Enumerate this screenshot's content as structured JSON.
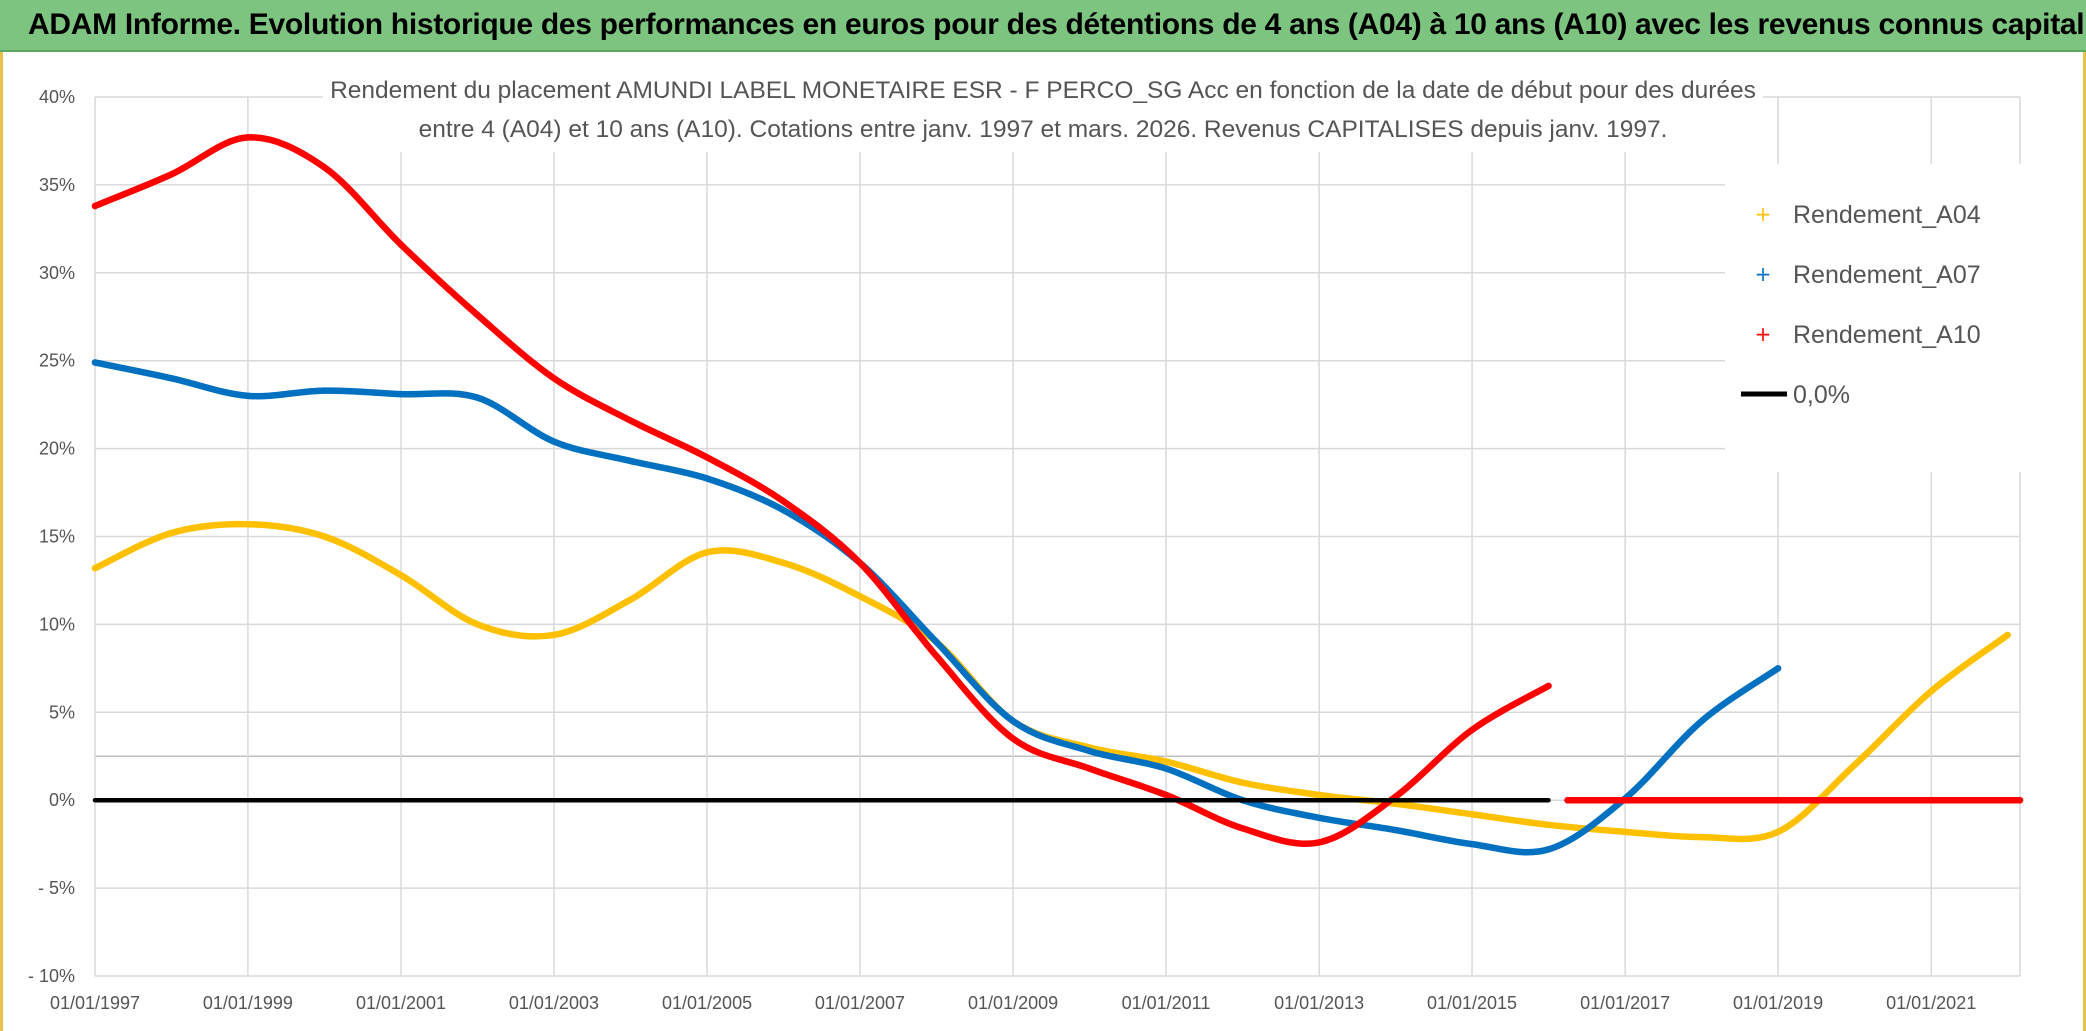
{
  "header": {
    "title": "ADAM Informe. Evolution historique des performances en euros pour des détentions de 4 ans (A04) à 10 ans (A10) avec les revenus connus capitalisés"
  },
  "colors": {
    "banner": "#7cc47f",
    "a04": "#ffc000",
    "a07": "#0070c0",
    "a10": "#ff0000",
    "zero": "#000000",
    "grid": "#d9d9d9"
  },
  "chart_data": {
    "type": "line",
    "title_line1": "Rendement du placement AMUNDI LABEL MONETAIRE ESR - F PERCO_SG Acc en fonction de la date de début pour des durées",
    "title_line2": "entre 4 (A04) et 10 ans (A10). Cotations entre janv. 1997 et mars. 2026. Revenus CAPITALISES depuis janv. 1997.",
    "xlim": [
      "01/01/1997",
      "01/03/2022"
    ],
    "ylim": [
      -10,
      40
    ],
    "x_tick_labels": [
      "01/01/1997",
      "01/01/1999",
      "01/01/2001",
      "01/01/2003",
      "01/01/2005",
      "01/01/2007",
      "01/01/2009",
      "01/01/2011",
      "01/01/2013",
      "01/01/2015",
      "01/01/2017",
      "01/01/2019",
      "01/01/2021"
    ],
    "y_ticks": [
      {
        "value": 40,
        "label": "40%"
      },
      {
        "value": 35,
        "label": "35%"
      },
      {
        "value": 30,
        "label": "30%"
      },
      {
        "value": 25,
        "label": "25%"
      },
      {
        "value": 20,
        "label": "20%"
      },
      {
        "value": 15,
        "label": "15%"
      },
      {
        "value": 10,
        "label": "10%"
      },
      {
        "value": 5,
        "label": "5%"
      },
      {
        "value": 0,
        "label": "0%"
      },
      {
        "value": -5,
        "label": "- 5%"
      },
      {
        "value": -10,
        "label": "- 10%"
      }
    ],
    "extra_gridline": 2.5,
    "grid": true,
    "legend_position": "top-right",
    "series": [
      {
        "name": "Rendement_A04",
        "color": "#ffc000",
        "x": [
          "01/01/1997",
          "01/01/1998",
          "01/01/1999",
          "01/01/2000",
          "01/01/2001",
          "01/01/2002",
          "01/01/2003",
          "01/01/2004",
          "01/01/2005",
          "01/01/2006",
          "01/01/2007",
          "01/01/2008",
          "01/01/2009",
          "01/01/2010",
          "01/01/2011",
          "01/01/2012",
          "01/01/2013",
          "01/01/2014",
          "01/01/2015",
          "01/01/2016",
          "01/01/2017",
          "01/01/2018",
          "01/01/2019",
          "01/01/2020",
          "01/01/2021",
          "01/01/2022"
        ],
        "y": [
          13.2,
          15.2,
          15.7,
          15.0,
          12.8,
          10.0,
          9.4,
          11.4,
          14.1,
          13.5,
          11.6,
          9.0,
          4.5,
          3.0,
          2.2,
          1.0,
          0.3,
          -0.2,
          -0.8,
          -1.4,
          -1.8,
          -2.1,
          -1.8,
          2.0,
          6.2,
          9.4
        ]
      },
      {
        "name": "Rendement_A07",
        "color": "#0070c0",
        "x": [
          "01/01/1997",
          "01/01/1998",
          "01/01/1999",
          "01/01/2000",
          "01/01/2001",
          "01/01/2002",
          "01/01/2003",
          "01/01/2004",
          "01/01/2005",
          "01/01/2006",
          "01/01/2007",
          "01/01/2008",
          "01/01/2009",
          "01/01/2010",
          "01/01/2011",
          "01/01/2012",
          "01/01/2013",
          "01/01/2014",
          "01/01/2015",
          "01/01/2016",
          "01/01/2017",
          "01/01/2018",
          "01/01/2019"
        ],
        "y": [
          24.9,
          24.0,
          23.0,
          23.3,
          23.1,
          22.9,
          20.4,
          19.3,
          18.3,
          16.5,
          13.5,
          9.0,
          4.5,
          2.8,
          1.8,
          0.0,
          -1.0,
          -1.7,
          -2.5,
          -2.8,
          0.1,
          4.5,
          7.5
        ]
      },
      {
        "name": "Rendement_A10",
        "color": "#ff0000",
        "x": [
          "01/01/1997",
          "01/01/1998",
          "01/01/1999",
          "01/01/2000",
          "01/01/2001",
          "01/01/2002",
          "01/01/2003",
          "01/01/2004",
          "01/01/2005",
          "01/01/2006",
          "01/01/2007",
          "01/01/2008",
          "01/01/2009",
          "01/01/2010",
          "01/01/2011",
          "01/01/2012",
          "01/01/2013",
          "01/01/2014",
          "01/01/2015",
          "01/01/2016"
        ],
        "y": [
          33.8,
          35.6,
          37.7,
          36.0,
          31.6,
          27.6,
          24.0,
          21.6,
          19.5,
          17.0,
          13.5,
          8.2,
          3.5,
          1.8,
          0.3,
          -1.6,
          -2.4,
          0.2,
          4.0,
          6.5
        ]
      },
      {
        "name": "0,0%",
        "color": "#000000",
        "x": [
          "01/01/1997",
          "01/01/2016"
        ],
        "y": [
          0,
          0
        ]
      },
      {
        "name": "",
        "color": "#ff0000",
        "x": [
          "01/04/2016",
          "01/03/2022"
        ],
        "y": [
          0,
          0
        ]
      }
    ]
  }
}
